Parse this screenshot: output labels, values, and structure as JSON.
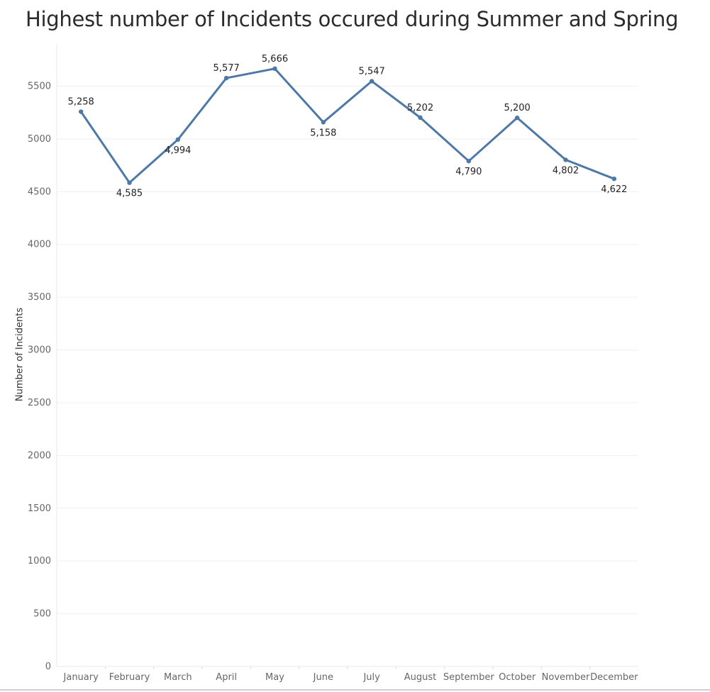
{
  "chart_data": {
    "type": "line",
    "title": "Highest number of Incidents occured during Summer and Spring",
    "xlabel": "",
    "ylabel": "Number of Incidents",
    "categories": [
      "January",
      "February",
      "March",
      "April",
      "May",
      "June",
      "July",
      "August",
      "September",
      "October",
      "November",
      "December"
    ],
    "values": [
      5258,
      4585,
      4994,
      5577,
      5666,
      5158,
      5547,
      5202,
      4790,
      5200,
      4802,
      4622
    ],
    "data_labels": [
      "5,258",
      "4,585",
      "4,994",
      "5,577",
      "5,666",
      "5,158",
      "5,547",
      "5,202",
      "4,790",
      "5,200",
      "4,802",
      "4,622"
    ],
    "label_position": [
      "above",
      "below",
      "below",
      "above",
      "above",
      "below",
      "above",
      "above",
      "below",
      "above",
      "below",
      "below"
    ],
    "yticks": [
      0,
      500,
      1000,
      1500,
      2000,
      2500,
      3000,
      3500,
      4000,
      4500,
      5000,
      5500
    ],
    "ylim": [
      0,
      5900
    ],
    "grid": true,
    "legend": "none",
    "line_color": "#4e79a7",
    "gridline_color": "#efefef"
  }
}
